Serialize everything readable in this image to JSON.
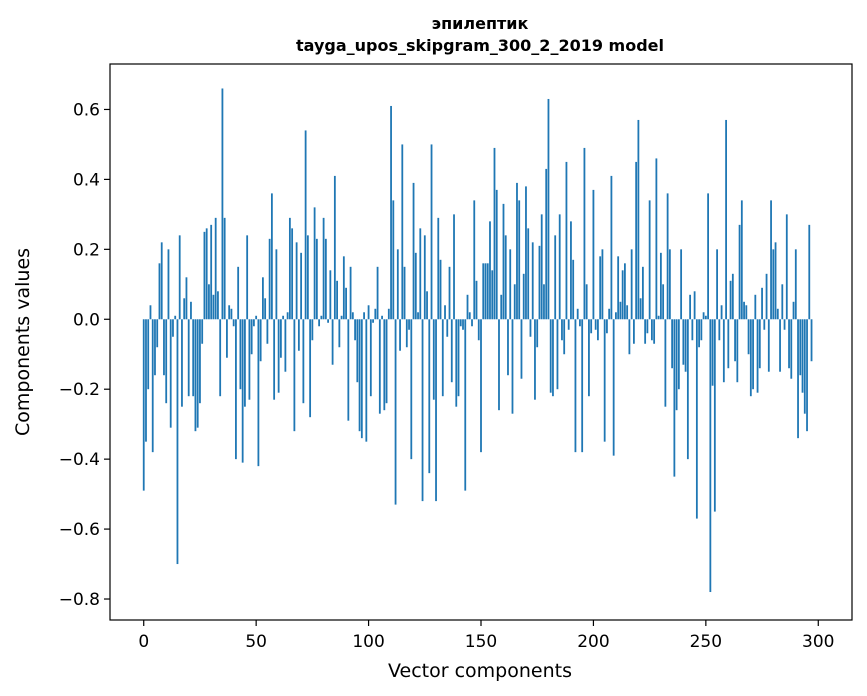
{
  "chart_data": {
    "type": "bar",
    "title": "эпилептик",
    "subtitle": "tayga_upos_skipgram_300_2_2019 model",
    "xlabel": "Vector components",
    "ylabel": "Components values",
    "xlim": [
      -15,
      315
    ],
    "ylim": [
      -0.86,
      0.73
    ],
    "xticks": [
      0,
      50,
      100,
      150,
      200,
      250,
      300
    ],
    "yticks": [
      -0.8,
      -0.6,
      -0.4,
      -0.2,
      0.0,
      0.2,
      0.4,
      0.6
    ],
    "ytick_labels": [
      "−0.8",
      "−0.6",
      "−0.4",
      "−0.2",
      "0.0",
      "0.2",
      "0.4",
      "0.6"
    ],
    "bar_color": "#1f77b4",
    "grid": false,
    "series": [
      {
        "values": [
          -0.49,
          -0.35,
          -0.2,
          0.04,
          -0.38,
          -0.16,
          -0.08,
          0.16,
          0.22,
          -0.16,
          -0.24,
          0.2,
          -0.31,
          -0.05,
          0.01,
          -0.7,
          0.24,
          -0.25,
          0.06,
          0.12,
          -0.22,
          0.05,
          -0.22,
          -0.32,
          -0.31,
          -0.24,
          -0.07,
          0.25,
          0.26,
          0.1,
          0.27,
          0.07,
          0.29,
          0.08,
          -0.22,
          0.66,
          0.29,
          -0.11,
          0.04,
          0.03,
          -0.02,
          -0.4,
          0.15,
          -0.2,
          -0.41,
          -0.25,
          0.24,
          -0.23,
          -0.1,
          -0.02,
          0.01,
          -0.42,
          -0.12,
          0.12,
          0.06,
          -0.07,
          0.23,
          0.36,
          -0.23,
          0.2,
          -0.21,
          -0.11,
          0.01,
          -0.15,
          0.02,
          0.29,
          0.26,
          -0.32,
          0.22,
          -0.09,
          0.19,
          -0.24,
          0.54,
          0.24,
          -0.28,
          -0.06,
          0.32,
          0.23,
          -0.02,
          0.01,
          0.29,
          0.23,
          -0.01,
          0.14,
          -0.13,
          0.41,
          0.11,
          -0.08,
          0.01,
          0.18,
          0.09,
          -0.29,
          0.15,
          0.02,
          -0.06,
          -0.18,
          -0.32,
          -0.34,
          0.02,
          -0.35,
          0.04,
          -0.22,
          -0.01,
          0.03,
          0.15,
          -0.27,
          0.01,
          -0.26,
          -0.24,
          0.03,
          0.61,
          0.34,
          -0.53,
          0.2,
          -0.09,
          0.5,
          0.15,
          -0.08,
          -0.03,
          -0.4,
          0.39,
          0.19,
          0.02,
          0.26,
          -0.52,
          0.24,
          0.08,
          -0.44,
          0.5,
          -0.23,
          -0.52,
          0.29,
          0.17,
          -0.22,
          0.04,
          -0.05,
          0.15,
          -0.18,
          0.3,
          -0.25,
          -0.22,
          -0.02,
          -0.03,
          -0.49,
          0.07,
          0.02,
          -0.02,
          0.34,
          0.11,
          -0.06,
          -0.38,
          0.16,
          0.16,
          0.16,
          0.28,
          0.14,
          0.49,
          0.37,
          -0.26,
          0.07,
          0.33,
          0.24,
          -0.16,
          0.2,
          -0.27,
          0.1,
          0.39,
          0.34,
          -0.17,
          0.13,
          0.38,
          0.26,
          -0.05,
          0.22,
          -0.23,
          -0.08,
          0.21,
          0.3,
          0.1,
          0.43,
          0.63,
          -0.21,
          -0.22,
          0.24,
          -0.2,
          0.3,
          -0.06,
          -0.1,
          0.45,
          -0.03,
          0.28,
          0.17,
          -0.38,
          0.03,
          -0.02,
          -0.38,
          0.49,
          0.1,
          -0.22,
          -0.04,
          0.37,
          -0.03,
          -0.06,
          0.18,
          0.2,
          -0.35,
          -0.04,
          0.03,
          0.41,
          -0.39,
          0.02,
          0.18,
          0.05,
          0.14,
          0.16,
          0.04,
          -0.1,
          0.2,
          -0.07,
          0.45,
          0.57,
          0.06,
          0.15,
          -0.07,
          -0.04,
          0.34,
          -0.06,
          -0.07,
          0.46,
          0.01,
          0.19,
          0.1,
          -0.25,
          0.36,
          0.2,
          -0.14,
          -0.45,
          -0.26,
          -0.2,
          0.2,
          -0.13,
          -0.15,
          -0.4,
          0.07,
          -0.06,
          0.08,
          -0.57,
          -0.08,
          -0.06,
          0.02,
          0.01,
          0.36,
          -0.78,
          -0.19,
          -0.55,
          0.2,
          -0.06,
          0.04,
          -0.18,
          0.57,
          -0.14,
          0.11,
          0.13,
          -0.12,
          -0.18,
          0.27,
          0.34,
          0.05,
          0.04,
          -0.1,
          -0.22,
          -0.2,
          0.07,
          -0.21,
          -0.14,
          0.09,
          -0.03,
          0.13,
          -0.15,
          0.34,
          0.2,
          0.22,
          0.03,
          -0.15,
          0.1,
          -0.03,
          0.3,
          -0.14,
          -0.17,
          0.05,
          0.2,
          -0.34,
          -0.16,
          -0.21,
          -0.27,
          -0.32,
          0.27,
          -0.12
        ]
      }
    ]
  }
}
